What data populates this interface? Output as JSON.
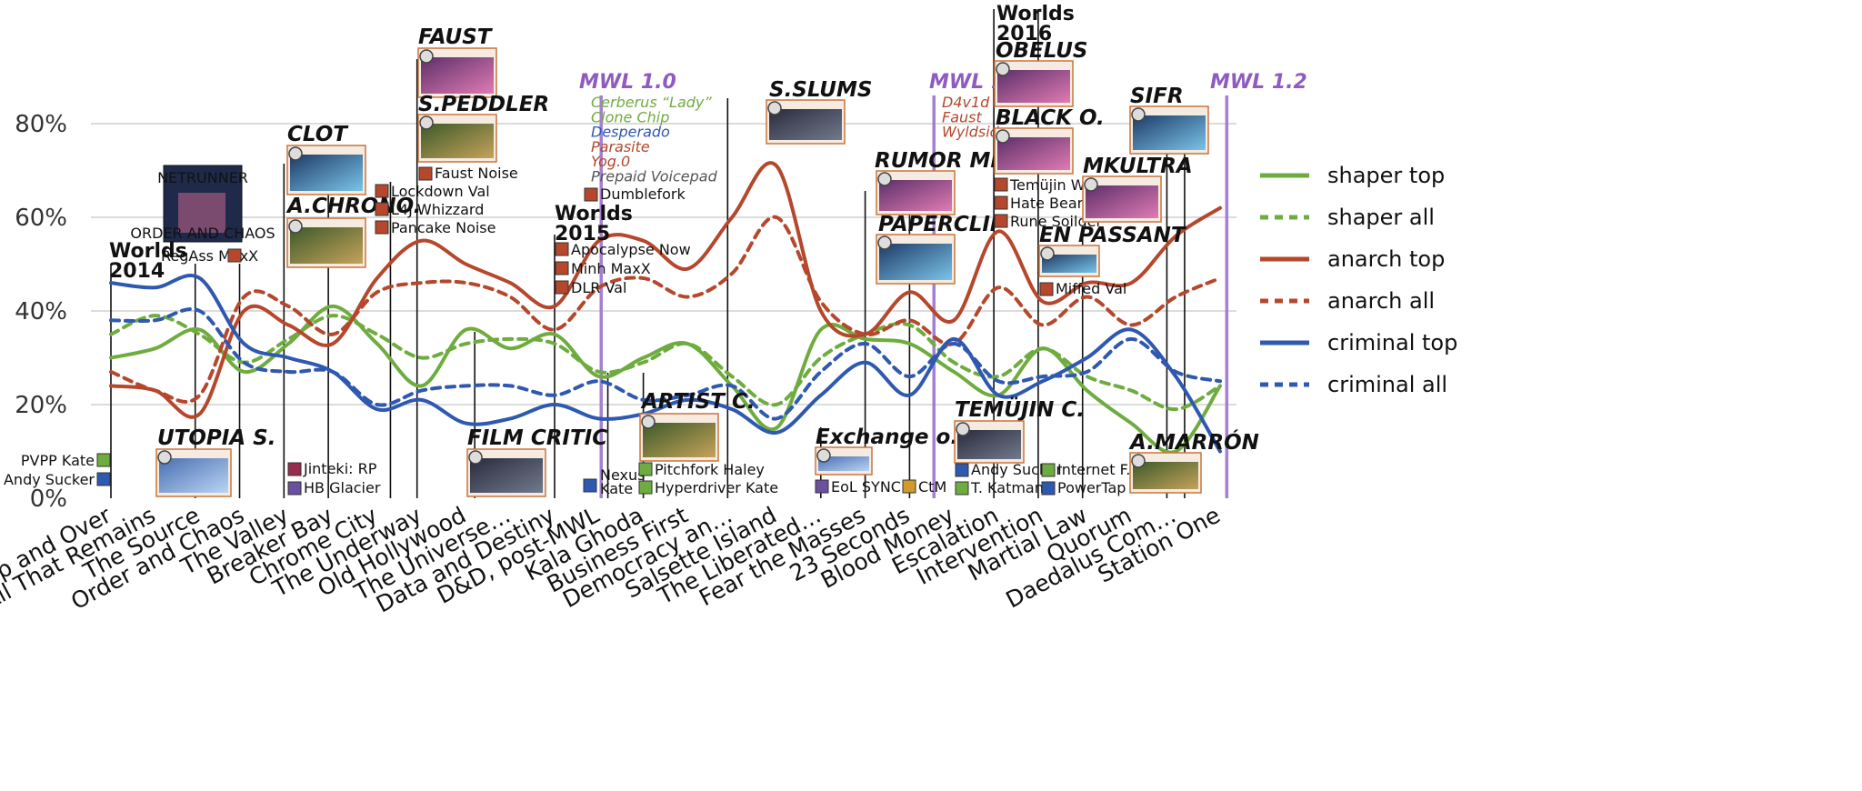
{
  "chart_data": {
    "type": "line",
    "categories": [
      "Up and Over",
      "All That Remains",
      "The Source",
      "Order and Chaos",
      "The Valley",
      "Breaker Bay",
      "Chrome City",
      "The Underway",
      "Old Hollywood",
      "The Universe…",
      "Data and Destiny",
      "D&D, post-MWL",
      "Kala Ghoda",
      "Business First",
      "Democracy an…",
      "Salsette Island",
      "The Liberated…",
      "Fear the Masses",
      "23 Seconds",
      "Blood Money",
      "Escalation",
      "Intervention",
      "Martial Law",
      "Quorum",
      "Daedalus Com…",
      "Station One"
    ],
    "yticks": [
      "0%",
      "20%",
      "40%",
      "60%",
      "80%"
    ],
    "ylim": [
      0,
      85
    ],
    "series": [
      {
        "name": "shaper top",
        "color": "#6fac3f",
        "style": "solid",
        "values": [
          30,
          32,
          36,
          27,
          33,
          41,
          33,
          24,
          36,
          32,
          35,
          26,
          30,
          33,
          24,
          15,
          36,
          34,
          33,
          27,
          22,
          32,
          23,
          16,
          10,
          24
        ]
      },
      {
        "name": "shaper all",
        "color": "#6fac3f",
        "style": "dotted",
        "values": [
          35,
          39,
          35,
          29,
          34,
          39,
          35,
          30,
          33,
          34,
          33,
          27,
          29,
          33,
          26,
          20,
          30,
          35,
          37,
          29,
          26,
          32,
          26,
          23,
          19,
          24
        ]
      },
      {
        "name": "anarch top",
        "color": "#b5472c",
        "style": "solid",
        "values": [
          24,
          23,
          18,
          40,
          37,
          33,
          47,
          55,
          50,
          46,
          41,
          55,
          55,
          49,
          60,
          71,
          40,
          35,
          44,
          38,
          57,
          42,
          46,
          46,
          56,
          62
        ]
      },
      {
        "name": "anarch all",
        "color": "#b5472c",
        "style": "dotted",
        "values": [
          27,
          23,
          22,
          43,
          41,
          35,
          44,
          46,
          46,
          43,
          36,
          45,
          47,
          43,
          48,
          60,
          42,
          35,
          38,
          33,
          45,
          37,
          43,
          37,
          43,
          47
        ]
      },
      {
        "name": "criminal top",
        "color": "#2f58b0",
        "style": "solid",
        "values": [
          46,
          45,
          47,
          33,
          30,
          27,
          19,
          21,
          16,
          17,
          20,
          17,
          18,
          21,
          19,
          14,
          22,
          29,
          22,
          34,
          22,
          25,
          30,
          36,
          26,
          10
        ]
      },
      {
        "name": "criminal all",
        "color": "#2f58b0",
        "style": "dotted",
        "values": [
          38,
          38,
          40,
          29,
          27,
          27,
          20,
          23,
          24,
          24,
          22,
          25,
          21,
          22,
          24,
          17,
          27,
          33,
          26,
          33,
          25,
          26,
          27,
          34,
          27,
          25
        ]
      }
    ]
  },
  "annotations": [
    {
      "id": "worlds2014",
      "type": "worlds",
      "top": "Worlds",
      "bottom": "2014",
      "cat": 0
    },
    {
      "id": "pvpp",
      "labels": [
        "PVPP Kate",
        "Andy Sucker"
      ]
    },
    {
      "id": "netrunner_box",
      "title": "NETRUNNER",
      "sub": "ORDER AND CHAOS",
      "labels": [
        "RegAss MaxX"
      ]
    },
    {
      "id": "utopia",
      "title": "UTOPIA S."
    },
    {
      "id": "clot",
      "title": "CLOT"
    },
    {
      "id": "achrono",
      "title": "A.CHRONO."
    },
    {
      "id": "jinteki",
      "labels": [
        "Jinteki: RP",
        "HB Glacier"
      ]
    },
    {
      "id": "lockdown",
      "labels": [
        "Lockdown Val",
        "L4J Whizzard",
        "Pancake Noise"
      ]
    },
    {
      "id": "faust",
      "title": "FAUST"
    },
    {
      "id": "speddler",
      "title": "S.PEDDLER",
      "labels": [
        "Faust Noise"
      ]
    },
    {
      "id": "filmcritic",
      "title": "FILM CRITIC"
    },
    {
      "id": "worlds2015",
      "type": "worlds",
      "top": "Worlds",
      "bottom": "2015",
      "labels": [
        "Apocalypse Now",
        "Minh MaxX",
        "DLR Val"
      ]
    },
    {
      "id": "mwl10",
      "title": "MWL 1.0",
      "labels": [
        "Cerberus “Lady”",
        "Clone Chip",
        "Desperado",
        "Parasite",
        "Yog.0",
        "Prepaid Voicepad"
      ],
      "colors": [
        "#6fac3f",
        "#6fac3f",
        "#2f58b0",
        "#b5472c",
        "#b5472c",
        "#555555"
      ]
    },
    {
      "id": "dumblefork",
      "labels": [
        "Dumblefork"
      ]
    },
    {
      "id": "nexus",
      "labels": [
        "Nexus",
        "Kate"
      ]
    },
    {
      "id": "artistc",
      "title": "ARTIST C.",
      "labels": [
        "Pitchfork Haley",
        "Hyperdriver Kate"
      ]
    },
    {
      "id": "sslums",
      "title": "S.SLUMS"
    },
    {
      "id": "exchange",
      "title": "Exchange o.l.",
      "labels": [
        "EoL SYNC"
      ]
    },
    {
      "id": "ctm",
      "labels": [
        "CtM"
      ]
    },
    {
      "id": "rumormill",
      "title": "RUMOR MILL"
    },
    {
      "id": "paperclip",
      "title": "PAPERCLIP"
    },
    {
      "id": "mwl11",
      "title": "MWL 1.1",
      "labels": [
        "D4v1d",
        "Faust",
        "Wyldside"
      ],
      "colors": [
        "#b5472c",
        "#b5472c",
        "#b5472c"
      ]
    },
    {
      "id": "temujinc",
      "title": "TEMÜJIN C.",
      "labels": [
        "Andy Sucker",
        "T. Katman"
      ]
    },
    {
      "id": "worlds2016",
      "type": "worlds",
      "top": "Worlds",
      "bottom": "2016"
    },
    {
      "id": "obelus",
      "title": "OBELUS"
    },
    {
      "id": "blacko",
      "title": "BLACK O.",
      "labels": [
        "Temüjin W.",
        "Hate Bear",
        "Rune Soilder"
      ]
    },
    {
      "id": "enpassant",
      "title": "EN PASSANT",
      "labels": [
        "Miffed Val"
      ]
    },
    {
      "id": "internet",
      "labels": [
        "Internet F.",
        "PowerTap A."
      ]
    },
    {
      "id": "mkultra",
      "title": "MKULTRA"
    },
    {
      "id": "sifr",
      "title": "SIFR"
    },
    {
      "id": "amarron",
      "title": "A.MARRÓN"
    },
    {
      "id": "mwl12",
      "title": "MWL 1.2"
    }
  ],
  "legend": [
    {
      "label": "shaper top",
      "color": "#6fac3f",
      "style": "solid"
    },
    {
      "label": "shaper all",
      "color": "#6fac3f",
      "style": "dotted"
    },
    {
      "label": "anarch top",
      "color": "#b5472c",
      "style": "solid"
    },
    {
      "label": "anarch all",
      "color": "#b5472c",
      "style": "dotted"
    },
    {
      "label": "criminal top",
      "color": "#2f58b0",
      "style": "solid"
    },
    {
      "label": "criminal all",
      "color": "#2f58b0",
      "style": "dotted"
    }
  ]
}
